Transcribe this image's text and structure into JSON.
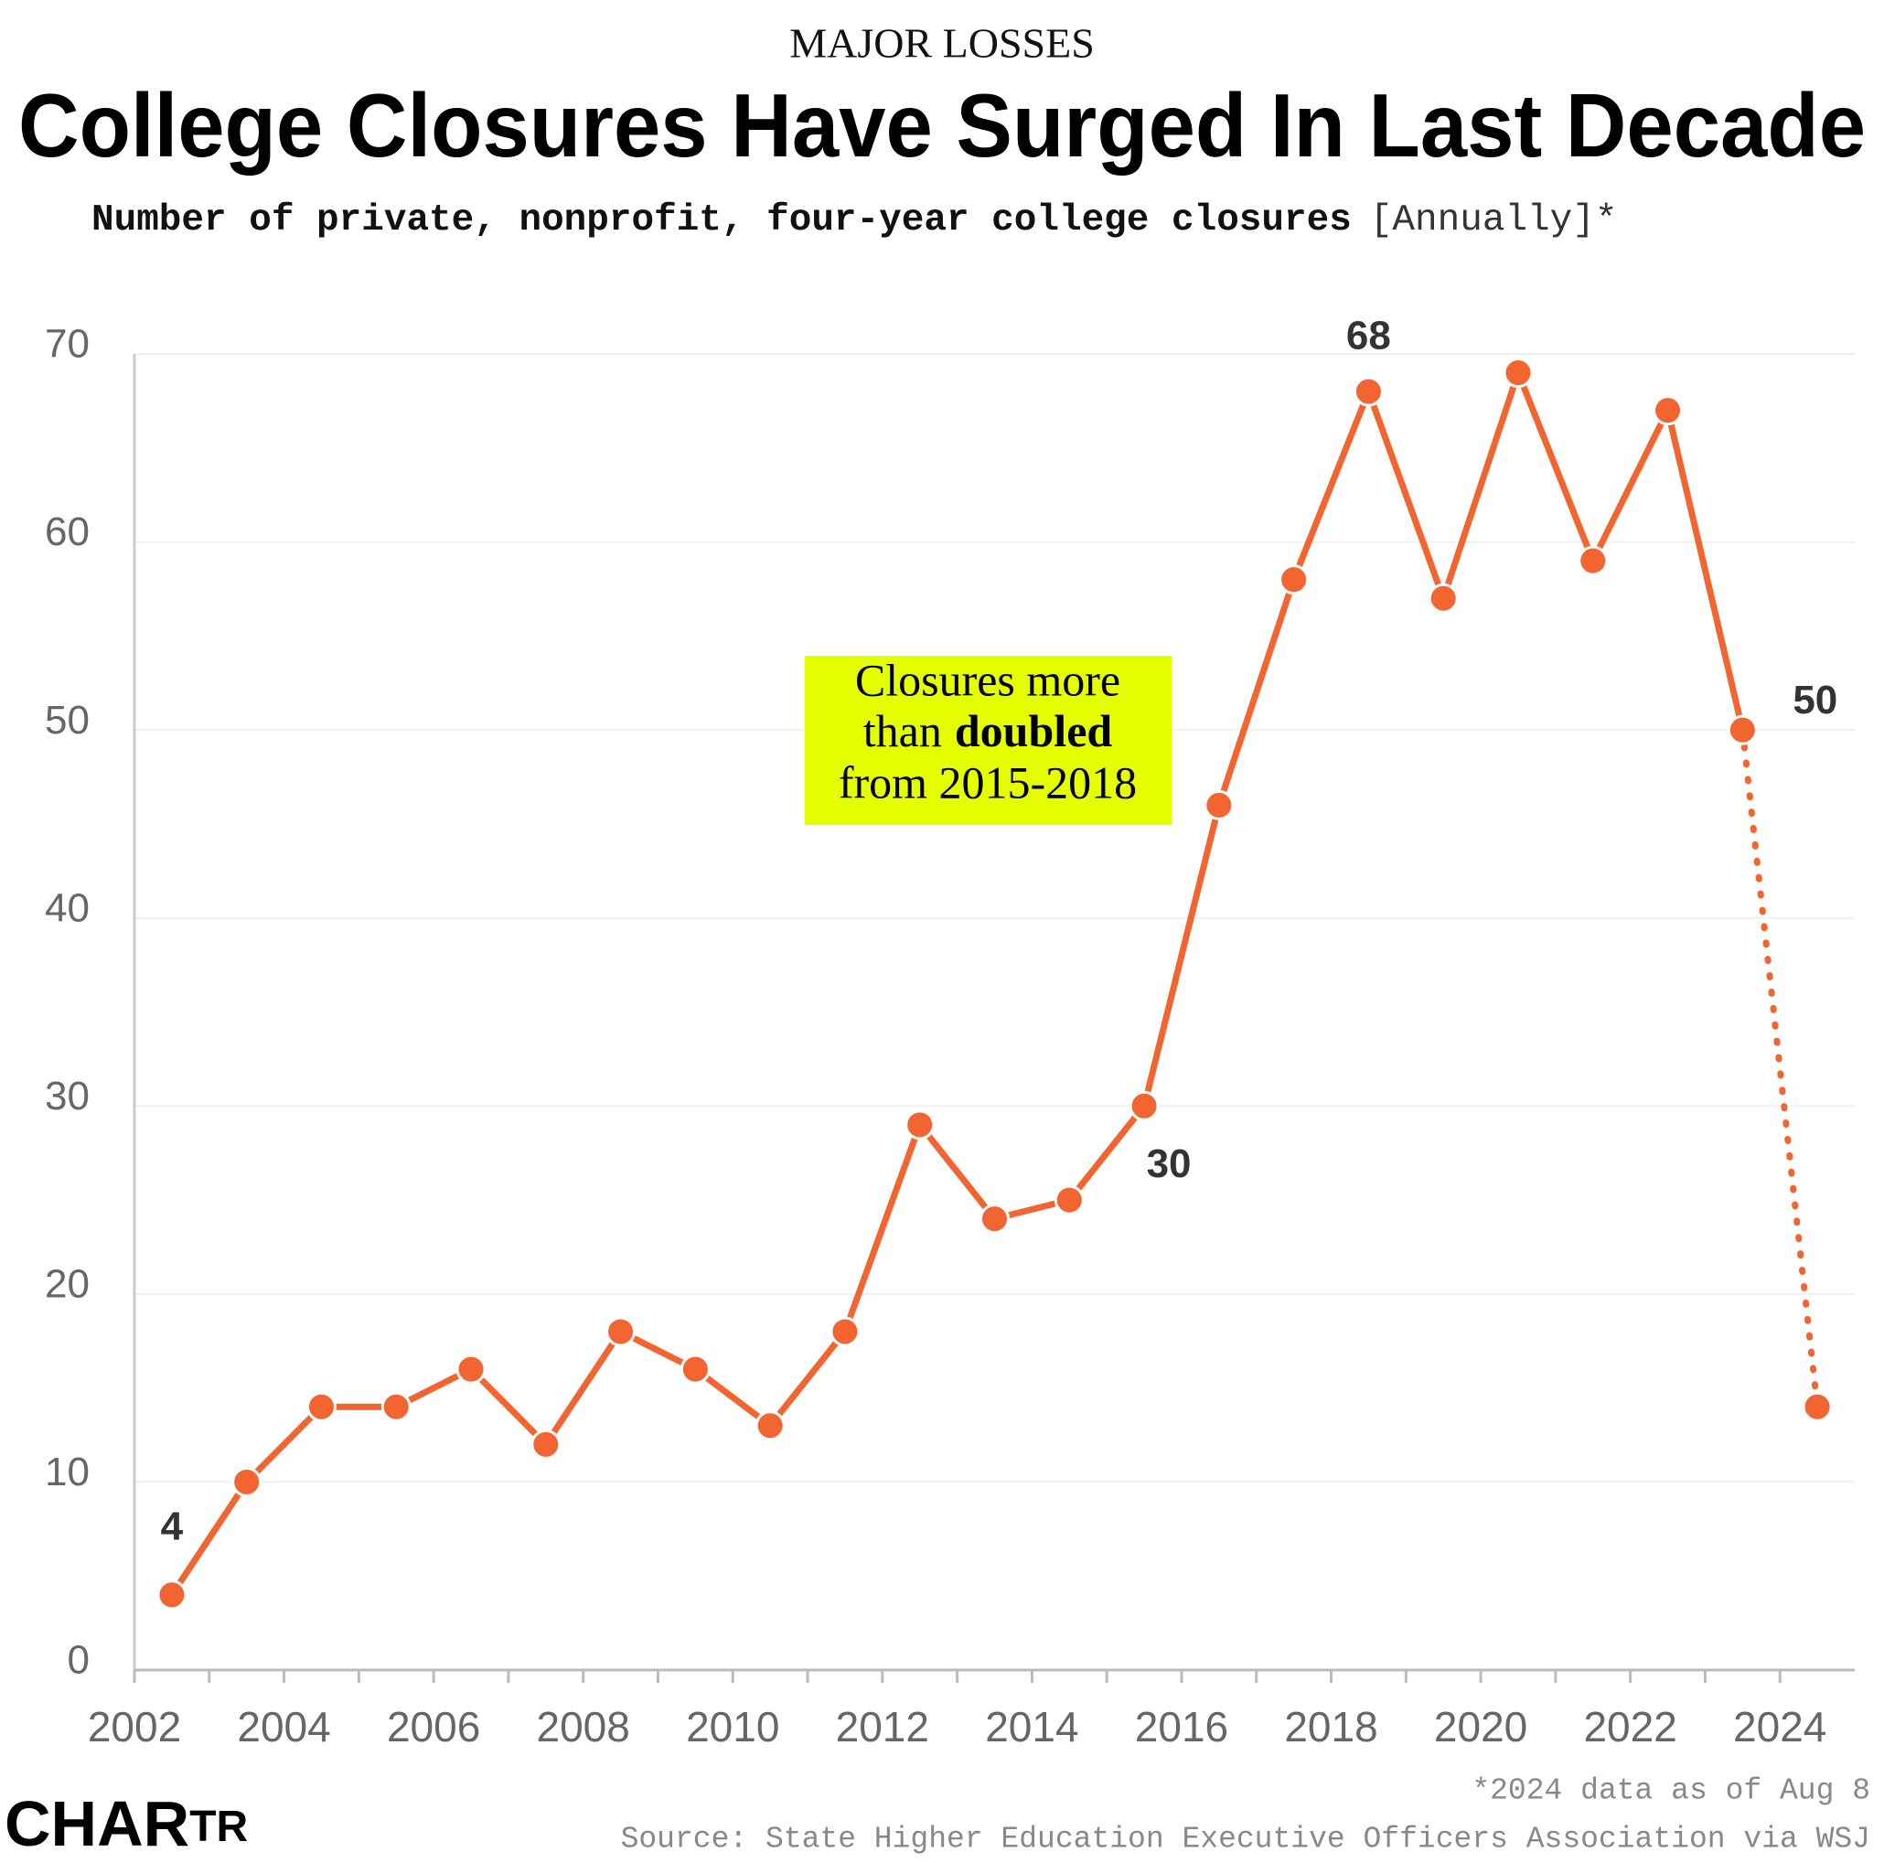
{
  "chart_data": {
    "type": "line",
    "kicker": "MAJOR LOSSES",
    "title": "College Closures Have Surged In Last Decade",
    "subtitle": "Number of private, nonprofit, four-year college closures",
    "subtitle_note": "[Annually]*",
    "x": [
      2002,
      2003,
      2004,
      2005,
      2006,
      2007,
      2008,
      2009,
      2010,
      2011,
      2012,
      2013,
      2014,
      2015,
      2016,
      2017,
      2018,
      2019,
      2020,
      2021,
      2022,
      2023,
      2024
    ],
    "series": [
      {
        "name": "Closures",
        "color": "#f26430",
        "values": [
          4,
          10,
          14,
          14,
          16,
          12,
          18,
          16,
          13,
          18,
          29,
          24,
          25,
          30,
          46,
          58,
          68,
          57,
          69,
          59,
          67,
          50,
          14
        ],
        "value_labels": [
          "4",
          null,
          null,
          null,
          null,
          null,
          null,
          null,
          null,
          null,
          null,
          null,
          null,
          "30",
          null,
          null,
          "68",
          null,
          null,
          null,
          null,
          "50",
          null
        ]
      }
    ],
    "last_segment_style": "dotted",
    "xlim": [
      2002,
      2025
    ],
    "xticks": [
      2002,
      2004,
      2006,
      2008,
      2010,
      2012,
      2014,
      2016,
      2018,
      2020,
      2022,
      2024
    ],
    "ylim": [
      0,
      70
    ],
    "yticks": [
      0,
      10,
      20,
      30,
      40,
      50,
      60,
      70
    ],
    "grid": true,
    "annotation": {
      "line_1": "Closures more",
      "line_2": "than",
      "bold": "doubled",
      "line_3": "from 2015-2018",
      "color": "#e6ff00"
    },
    "footnote": "*2024 data as of Aug 8",
    "source": "Source: State Higher Education Executive Officers Association via WSJ",
    "brand": [
      "CHAR",
      "TR"
    ]
  }
}
